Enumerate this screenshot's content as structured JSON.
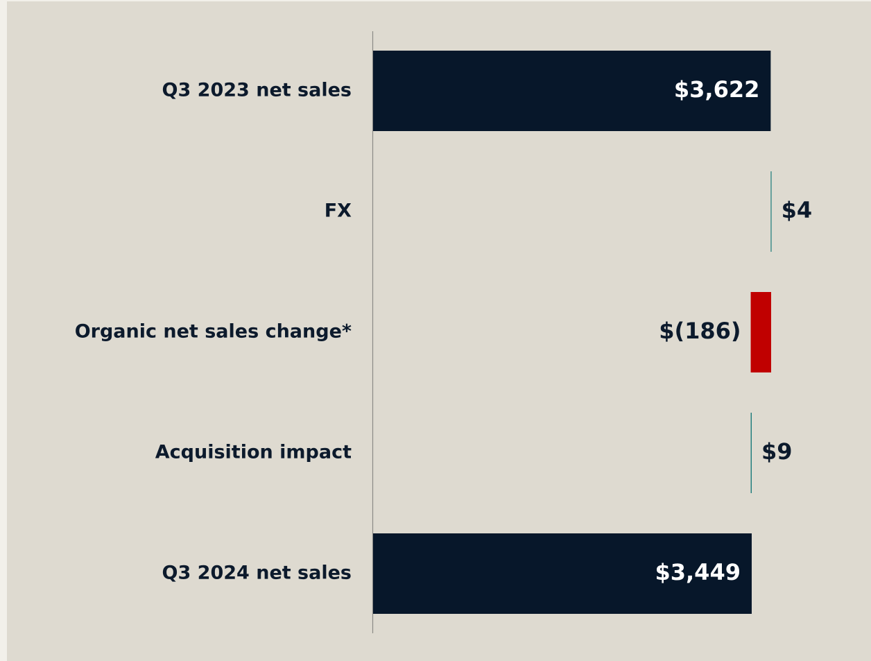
{
  "chart_data": {
    "type": "waterfall",
    "categories": [
      "Q3 2023 net sales",
      "FX",
      "Organic net sales change*",
      "Acquisition impact",
      "Q3 2024 net sales"
    ],
    "values": [
      3622,
      4,
      -186,
      9,
      3449
    ],
    "value_labels": [
      "$3,622",
      "$4",
      "$(186)",
      "$9",
      "$3,449"
    ],
    "measure": [
      "absolute",
      "relative",
      "relative",
      "relative",
      "total"
    ],
    "colors": [
      "#07172a",
      "#1a7a7a",
      "#c00000",
      "#1a7a7a",
      "#07172a"
    ]
  }
}
